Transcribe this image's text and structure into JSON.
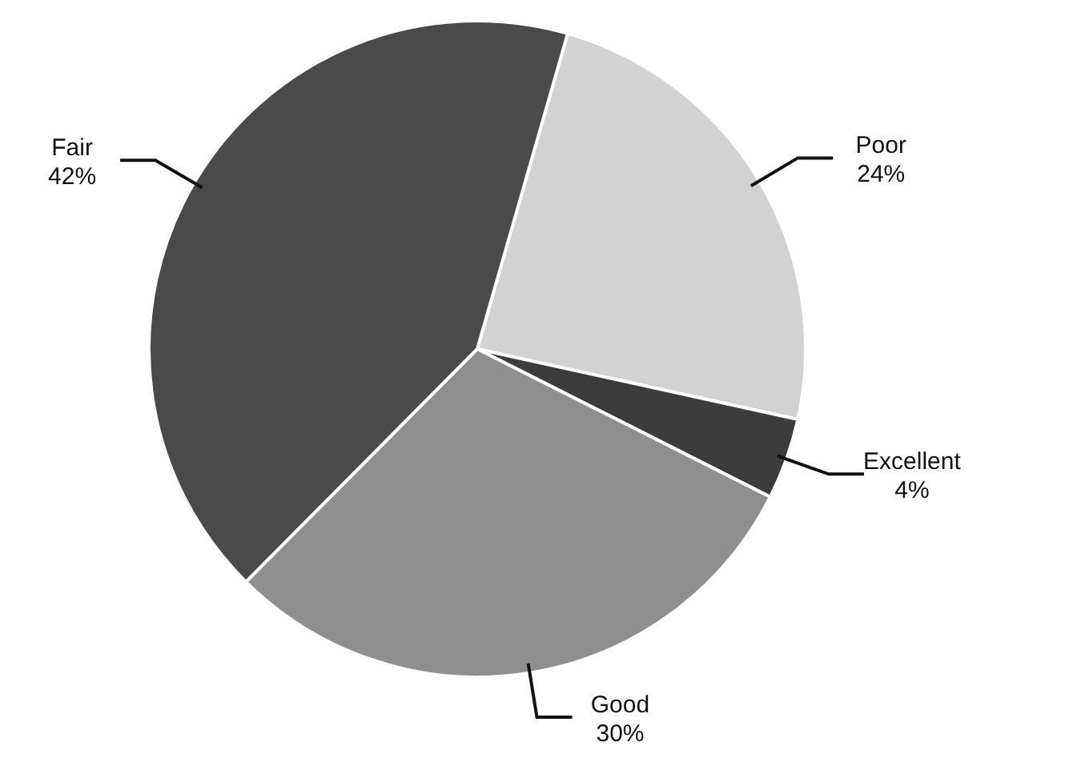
{
  "chart_data": {
    "type": "pie",
    "categories": [
      "Poor",
      "Excellent",
      "Good",
      "Fair"
    ],
    "values": [
      24,
      4,
      30,
      42
    ],
    "colors": [
      "#d2d2d2",
      "#3c3c3c",
      "#8f8f8f",
      "#4a4a4a"
    ],
    "value_labels": [
      "24%",
      "4%",
      "30%",
      "42%"
    ]
  }
}
